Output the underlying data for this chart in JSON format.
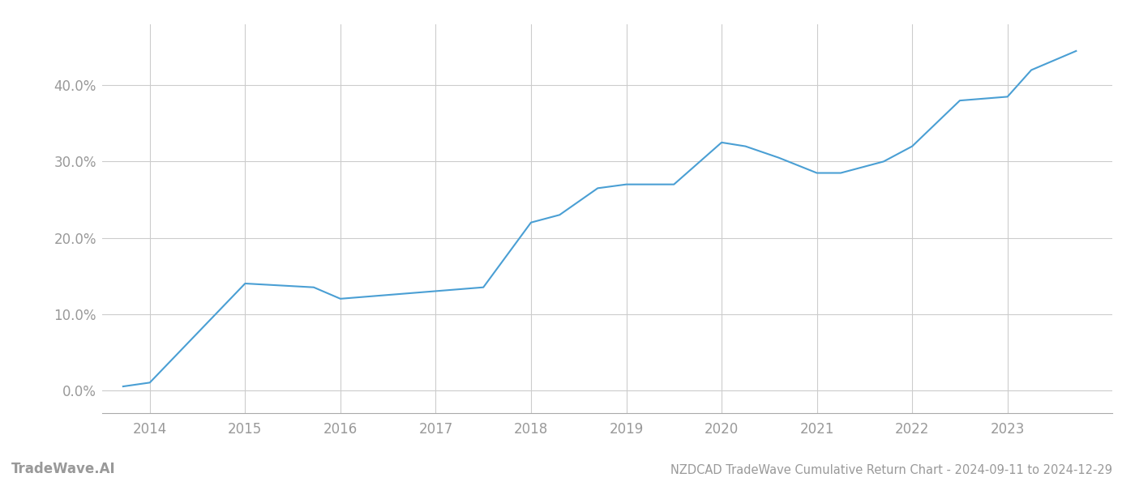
{
  "x_values": [
    2013.72,
    2014.0,
    2015.0,
    2015.72,
    2016.0,
    2016.5,
    2017.0,
    2017.5,
    2018.0,
    2018.3,
    2018.7,
    2019.0,
    2019.5,
    2020.0,
    2020.25,
    2020.6,
    2021.0,
    2021.25,
    2021.7,
    2022.0,
    2022.5,
    2023.0,
    2023.25,
    2023.72
  ],
  "y_values": [
    0.5,
    1.0,
    14.0,
    13.5,
    12.0,
    12.5,
    13.0,
    13.5,
    22.0,
    23.0,
    26.5,
    27.0,
    27.0,
    32.5,
    32.0,
    30.5,
    28.5,
    28.5,
    30.0,
    32.0,
    38.0,
    38.5,
    42.0,
    44.5
  ],
  "line_color": "#4a9fd4",
  "line_width": 1.5,
  "background_color": "#ffffff",
  "grid_color": "#cccccc",
  "title": "NZDCAD TradeWave Cumulative Return Chart - 2024-09-11 to 2024-12-29",
  "watermark": "TradeWave.AI",
  "xlim": [
    2013.5,
    2024.1
  ],
  "ylim": [
    -3,
    48
  ],
  "yticks": [
    0,
    10,
    20,
    30,
    40
  ],
  "ytick_labels": [
    "0.0%",
    "10.0%",
    "20.0%",
    "30.0%",
    "40.0%"
  ],
  "xticks": [
    2014,
    2015,
    2016,
    2017,
    2018,
    2019,
    2020,
    2021,
    2022,
    2023
  ],
  "tick_color": "#999999",
  "tick_fontsize": 12,
  "title_fontsize": 10.5,
  "watermark_fontsize": 12,
  "spine_color": "#aaaaaa"
}
